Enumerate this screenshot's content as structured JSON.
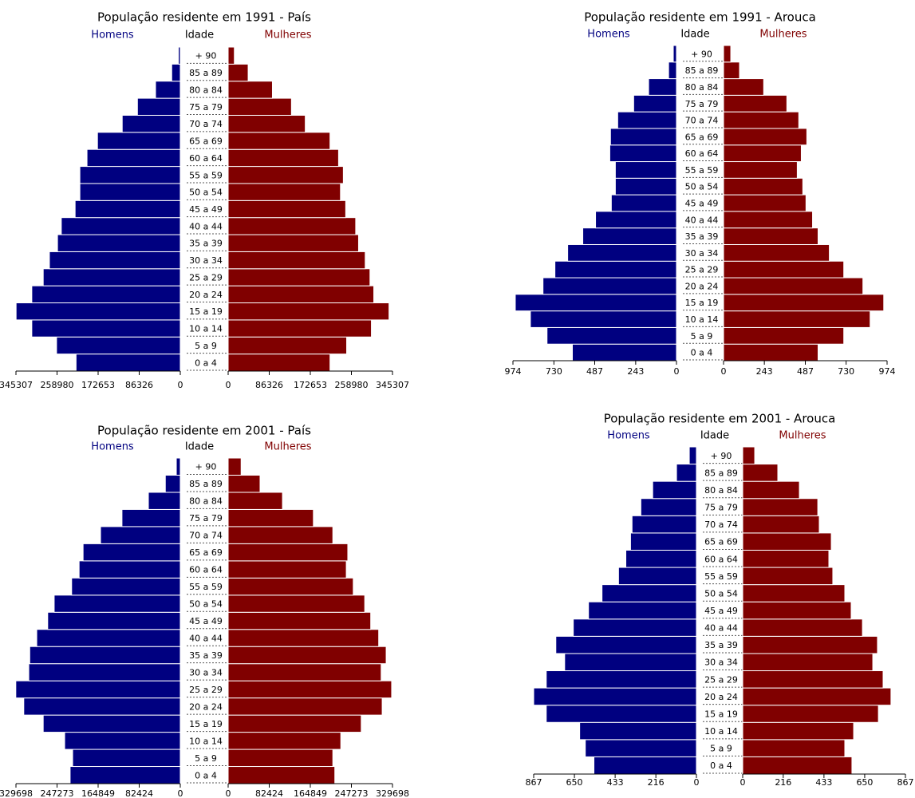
{
  "chart_data": [
    {
      "type": "pyramid",
      "title": "População residente em 1991 - País",
      "y_label": "Idade",
      "categories": [
        "0 a 4",
        "5 a 9",
        "10 a 14",
        "15 a 19",
        "20 a 24",
        "25 a 29",
        "30 a 34",
        "35 a 39",
        "40 a 44",
        "45 a 49",
        "50 a 54",
        "55 a 59",
        "60 a 64",
        "65 a 69",
        "70 a 74",
        "75 a 79",
        "80 a 84",
        "85 a 89",
        "+ 90"
      ],
      "series": [
        {
          "name": "Homens",
          "color": "#000080",
          "values": [
            219000,
            260000,
            312000,
            345000,
            312000,
            288000,
            275000,
            258000,
            250000,
            221000,
            211000,
            211000,
            196000,
            174000,
            122000,
            90000,
            52000,
            18000,
            4000
          ]
        },
        {
          "name": "Mulheres",
          "color": "#800000",
          "values": [
            214000,
            249000,
            301000,
            338000,
            306000,
            298000,
            288000,
            274000,
            268000,
            247000,
            236000,
            242000,
            232000,
            214000,
            162000,
            133000,
            93000,
            42000,
            13000
          ]
        }
      ],
      "xlim": [
        0,
        345307
      ],
      "xticks": [
        0,
        86326,
        172653,
        258980,
        345307
      ]
    },
    {
      "type": "pyramid",
      "title": "População residente em 1991 - Arouca",
      "y_label": "Idade",
      "categories": [
        "0 a 4",
        "5 a 9",
        "10 a 14",
        "15 a 19",
        "20 a 24",
        "25 a 29",
        "30 a 34",
        "35 a 39",
        "40 a 44",
        "45 a 49",
        "50 a 54",
        "55 a 59",
        "60 a 64",
        "65 a 69",
        "70 a 74",
        "75 a 79",
        "80 a 84",
        "85 a 89",
        "+ 90"
      ],
      "series": [
        {
          "name": "Homens",
          "color": "#000080",
          "values": [
            620,
            771,
            870,
            960,
            795,
            724,
            648,
            558,
            482,
            388,
            364,
            364,
            397,
            393,
            350,
            255,
            166,
            47,
            19
          ]
        },
        {
          "name": "Mulheres",
          "color": "#800000",
          "values": [
            563,
            716,
            873,
            954,
            830,
            716,
            630,
            563,
            530,
            491,
            472,
            439,
            463,
            496,
            448,
            377,
            239,
            95,
            43
          ]
        }
      ],
      "xlim": [
        0,
        974
      ],
      "xticks": [
        0,
        243,
        487,
        730,
        974
      ]
    },
    {
      "type": "pyramid",
      "title": "População residente em 2001 - País",
      "y_label": "Idade",
      "categories": [
        "0 a 4",
        "5 a 9",
        "10 a 14",
        "15 a 19",
        "20 a 24",
        "25 a 29",
        "30 a 34",
        "35 a 39",
        "40 a 44",
        "45 a 49",
        "50 a 54",
        "55 a 59",
        "60 a 64",
        "65 a 69",
        "70 a 74",
        "75 a 79",
        "80 a 84",
        "85 a 89",
        "+ 90"
      ],
      "series": [
        {
          "name": "Homens",
          "color": "#000080",
          "values": [
            221000,
            216000,
            232000,
            275000,
            314000,
            330000,
            304000,
            302000,
            288000,
            266000,
            253000,
            218000,
            203000,
            195000,
            160000,
            117000,
            64000,
            30000,
            8000
          ]
        },
        {
          "name": "Mulheres",
          "color": "#800000",
          "values": [
            214000,
            210000,
            226000,
            267000,
            309000,
            328000,
            307000,
            317000,
            302000,
            286000,
            274000,
            251000,
            237000,
            240000,
            210000,
            171000,
            109000,
            64000,
            26000
          ]
        }
      ],
      "xlim": [
        0,
        329698
      ],
      "xticks": [
        0,
        82424,
        164849,
        247273,
        329698
      ]
    },
    {
      "type": "pyramid",
      "title": "População residente em 2001 - Arouca",
      "y_label": "Idade",
      "categories": [
        "0 a 4",
        "5 a 9",
        "10 a 14",
        "15 a 19",
        "20 a 24",
        "25 a 29",
        "30 a 34",
        "35 a 39",
        "40 a 44",
        "45 a 49",
        "50 a 54",
        "55 a 59",
        "60 a 64",
        "65 a 69",
        "70 a 74",
        "75 a 79",
        "80 a 84",
        "85 a 89",
        "+ 90"
      ],
      "series": [
        {
          "name": "Homens",
          "color": "#000080",
          "values": [
            546,
            592,
            622,
            800,
            867,
            800,
            702,
            749,
            656,
            575,
            503,
            415,
            376,
            351,
            343,
            296,
            233,
            106,
            38
          ]
        },
        {
          "name": "Mulheres",
          "color": "#800000",
          "values": [
            582,
            544,
            591,
            723,
            790,
            748,
            693,
            718,
            638,
            578,
            544,
            480,
            459,
            472,
            408,
            400,
            302,
            187,
            64
          ]
        }
      ],
      "xlim": [
        0,
        867
      ],
      "xticks": [
        0,
        216,
        433,
        650,
        867
      ]
    }
  ]
}
